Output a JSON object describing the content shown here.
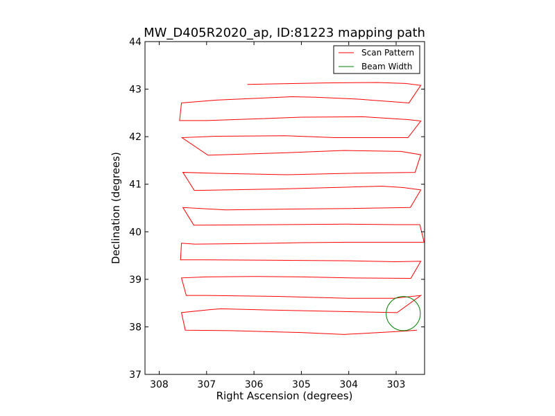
{
  "chart_data": {
    "type": "line",
    "title": "MW_D405R2020_ap, ID:81223 mapping path",
    "xlabel": "Right Ascension (degrees)",
    "ylabel": "Declination (degrees)",
    "xlim": [
      308.3,
      302.4
    ],
    "ylim": [
      37,
      44
    ],
    "x_inverted": true,
    "xticks": [
      308,
      307,
      306,
      305,
      304,
      303
    ],
    "yticks": [
      37,
      38,
      39,
      40,
      41,
      42,
      43,
      44
    ],
    "grid": false,
    "legend_position": "upper right",
    "series": [
      {
        "name": "Scan Pattern",
        "color": "#ff0000",
        "points": [
          [
            302.56,
            37.93
          ],
          [
            303.0,
            37.9
          ],
          [
            304.1,
            37.84
          ],
          [
            305.0,
            37.88
          ],
          [
            306.5,
            37.92
          ],
          [
            307.45,
            37.93
          ],
          [
            307.53,
            38.3
          ],
          [
            306.95,
            38.36
          ],
          [
            306.7,
            38.38
          ],
          [
            305.5,
            38.35
          ],
          [
            304.0,
            38.32
          ],
          [
            302.98,
            38.3
          ],
          [
            302.48,
            38.66
          ],
          [
            303.05,
            38.6
          ],
          [
            304.0,
            38.6
          ],
          [
            305.5,
            38.64
          ],
          [
            307.0,
            38.66
          ],
          [
            307.43,
            38.66
          ],
          [
            307.53,
            39.03
          ],
          [
            307.0,
            39.05
          ],
          [
            306.0,
            39.06
          ],
          [
            305.0,
            39.05
          ],
          [
            304.0,
            39.03
          ],
          [
            302.69,
            39.02
          ],
          [
            302.48,
            39.38
          ],
          [
            303.0,
            39.37
          ],
          [
            304.0,
            39.39
          ],
          [
            305.5,
            39.4
          ],
          [
            307.0,
            39.41
          ],
          [
            307.55,
            39.41
          ],
          [
            307.53,
            39.76
          ],
          [
            307.25,
            39.74
          ],
          [
            306.2,
            39.75
          ],
          [
            305.0,
            39.77
          ],
          [
            304.0,
            39.78
          ],
          [
            302.41,
            39.78
          ],
          [
            302.5,
            40.15
          ],
          [
            303.0,
            40.15
          ],
          [
            304.0,
            40.16
          ],
          [
            305.5,
            40.15
          ],
          [
            307.2,
            40.14
          ],
          [
            307.27,
            40.14
          ],
          [
            307.5,
            40.51
          ],
          [
            306.6,
            40.46
          ],
          [
            305.0,
            40.48
          ],
          [
            304.0,
            40.49
          ],
          [
            302.7,
            40.51
          ],
          [
            302.48,
            40.88
          ],
          [
            302.85,
            40.93
          ],
          [
            303.3,
            40.96
          ],
          [
            304.0,
            40.94
          ],
          [
            305.5,
            40.9
          ],
          [
            307.2,
            40.87
          ],
          [
            307.26,
            40.87
          ],
          [
            307.5,
            41.25
          ],
          [
            306.8,
            41.23
          ],
          [
            305.3,
            41.2
          ],
          [
            304.0,
            41.23
          ],
          [
            302.6,
            41.25
          ],
          [
            302.48,
            41.62
          ],
          [
            302.9,
            41.69
          ],
          [
            303.45,
            41.7
          ],
          [
            304.1,
            41.71
          ],
          [
            305.4,
            41.66
          ],
          [
            306.97,
            41.61
          ],
          [
            307.52,
            41.98
          ],
          [
            306.8,
            42.01
          ],
          [
            305.35,
            42.02
          ],
          [
            304.8,
            42.0
          ],
          [
            304.3,
            41.98
          ],
          [
            302.75,
            41.98
          ],
          [
            302.48,
            42.33
          ],
          [
            302.75,
            42.36
          ],
          [
            303.7,
            42.42
          ],
          [
            305.0,
            42.41
          ],
          [
            306.1,
            42.37
          ],
          [
            307.0,
            42.34
          ],
          [
            307.57,
            42.34
          ],
          [
            307.53,
            42.71
          ],
          [
            306.8,
            42.77
          ],
          [
            305.2,
            42.84
          ],
          [
            304.7,
            42.83
          ],
          [
            303.8,
            42.79
          ],
          [
            302.73,
            42.71
          ],
          [
            302.48,
            43.08
          ],
          [
            302.8,
            43.12
          ],
          [
            303.4,
            43.14
          ],
          [
            304.5,
            43.13
          ],
          [
            306.14,
            43.1
          ]
        ]
      },
      {
        "name": "Beam Width",
        "color": "#008000",
        "shape": "circle",
        "center": [
          302.85,
          38.28
        ],
        "radius": 0.36
      }
    ]
  }
}
